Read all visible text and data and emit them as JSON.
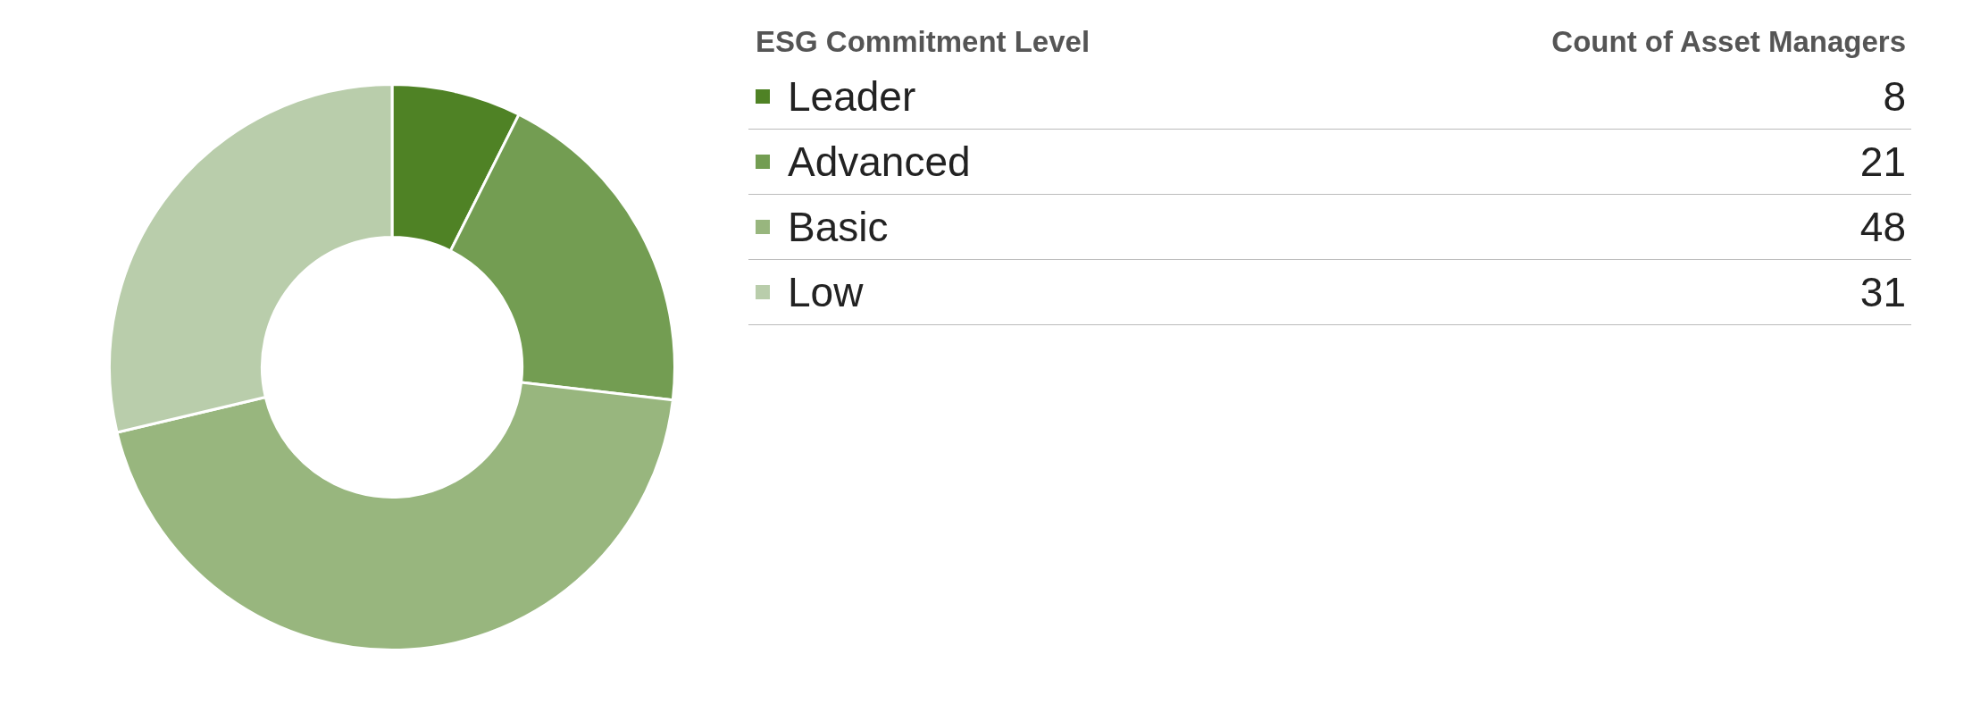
{
  "chart_data": {
    "type": "donut",
    "legend_title": "ESG Commitment Level",
    "annotations": [
      "Count of Asset Managers"
    ],
    "categories": [
      "Leader",
      "Advanced",
      "Basic",
      "Low"
    ],
    "values": [
      8,
      21,
      48,
      31
    ],
    "colors": [
      "#4f8225",
      "#739d52",
      "#98b67e",
      "#b9cdab"
    ],
    "data_labels": true,
    "legend": "right"
  }
}
